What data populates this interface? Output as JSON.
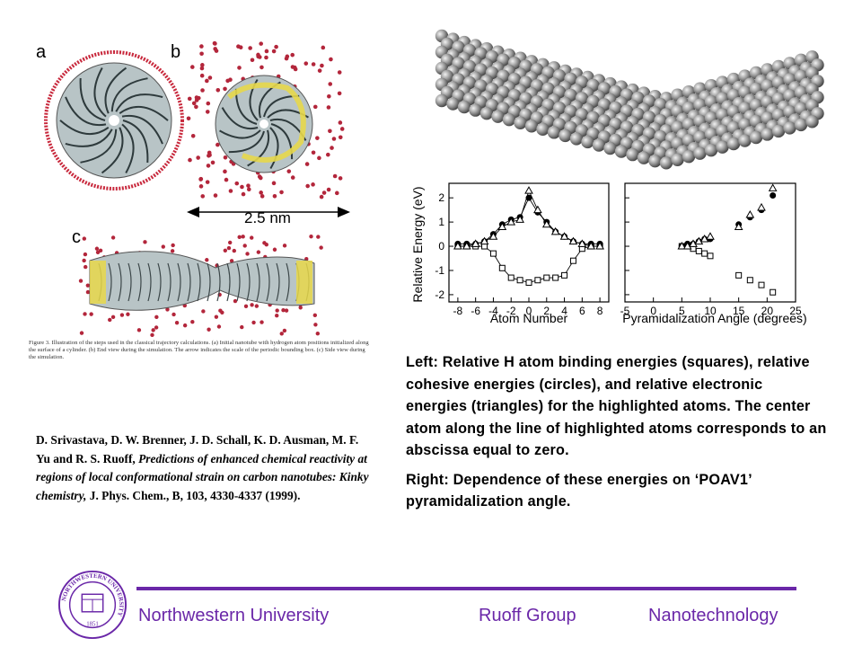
{
  "left_figure": {
    "panel_labels": [
      "a",
      "b",
      "c"
    ],
    "scale_label": "2.5 nm",
    "caption": "Figure 3. Illustration of the steps used in the classical trajectory calculations. (a) Initial nanotube with hydrogen atom positions initialized along the surface of a cylinder. (b) End view during the simulation. The arrow indicates the scale of the periodic bounding box. (c) Side view during the simulation."
  },
  "right_figure": {
    "ylabel": "Relative Energy (eV)",
    "y_ticks": [
      "2",
      "1",
      "0",
      "-1",
      "-2"
    ],
    "left_x_ticks": [
      "-8",
      "-6",
      "-4",
      "-2",
      "0",
      "2",
      "4",
      "6",
      "8"
    ],
    "right_x_ticks": [
      "-5",
      "0",
      "5",
      "10",
      "15",
      "20",
      "25"
    ],
    "left_xlabel": "Atom Number",
    "right_xlabel": "Pyramidalization Angle (degrees)"
  },
  "chart_data": [
    {
      "type": "line",
      "xlabel": "Atom Number",
      "ylabel": "Relative Energy (eV)",
      "xlim": [
        -9,
        9
      ],
      "ylim": [
        -2.3,
        2.6
      ],
      "series": [
        {
          "marker": "square",
          "x": [
            -8,
            -7,
            -6,
            -5,
            -4,
            -3,
            -2,
            -1,
            0,
            1,
            2,
            3,
            4,
            5,
            6,
            7,
            8
          ],
          "y": [
            0,
            0,
            0,
            0,
            -0.3,
            -0.9,
            -1.3,
            -1.4,
            -1.5,
            -1.4,
            -1.3,
            -1.3,
            -1.2,
            -0.6,
            -0.1,
            0,
            0
          ]
        },
        {
          "marker": "circle",
          "x": [
            -8,
            -7,
            -6,
            -5,
            -4,
            -3,
            -2,
            -1,
            0,
            1,
            2,
            3,
            4,
            5,
            6,
            7,
            8
          ],
          "y": [
            0.1,
            0.1,
            0.1,
            0.2,
            0.5,
            0.9,
            1.1,
            1.2,
            2.0,
            1.4,
            1.0,
            0.6,
            0.4,
            0.2,
            0.1,
            0.1,
            0.1
          ]
        },
        {
          "marker": "triangle",
          "x": [
            -8,
            -7,
            -6,
            -5,
            -4,
            -3,
            -2,
            -1,
            0,
            1,
            2,
            3,
            4,
            5,
            6,
            7,
            8
          ],
          "y": [
            0,
            0,
            0.1,
            0.2,
            0.4,
            0.8,
            1.0,
            1.1,
            2.3,
            1.5,
            0.9,
            0.6,
            0.4,
            0.2,
            0.1,
            0,
            0
          ]
        }
      ]
    },
    {
      "type": "scatter",
      "xlabel": "Pyramidalization Angle (degrees)",
      "xlim": [
        -5,
        25
      ],
      "ylim": [
        -2.3,
        2.6
      ],
      "series": [
        {
          "marker": "square",
          "x": [
            5,
            6,
            7,
            8,
            9,
            10,
            15,
            17,
            19,
            21
          ],
          "y": [
            0,
            0,
            -0.1,
            -0.2,
            -0.3,
            -0.4,
            -1.2,
            -1.4,
            -1.6,
            -1.9
          ]
        },
        {
          "marker": "circle",
          "x": [
            5,
            6,
            7,
            8,
            9,
            10,
            15,
            17,
            19,
            21
          ],
          "y": [
            0,
            0.1,
            0.1,
            0.2,
            0.3,
            0.3,
            0.9,
            1.2,
            1.5,
            2.1
          ]
        },
        {
          "marker": "triangle",
          "x": [
            5,
            6,
            7,
            8,
            9,
            10,
            15,
            17,
            19,
            21
          ],
          "y": [
            0,
            0,
            0.1,
            0.2,
            0.3,
            0.4,
            0.8,
            1.3,
            1.6,
            2.4
          ]
        }
      ]
    }
  ],
  "citation": {
    "authors": "D. Srivastava, D. W. Brenner, J. D. Schall, K. D. Ausman, M. F. Yu and R. S. Ruoff,",
    "title": "Predictions of enhanced chemical reactivity  at regions of local conformational strain on carbon nanotubes: Kinky chemistry,",
    "journal": "J. Phys. Chem., B, 103, 4330-4337 (1999)."
  },
  "description": {
    "left": "Left: Relative H atom binding energies (squares), relative cohesive energies (circles), and relative electronic energies (triangles) for the highlighted atoms. The center atom along the line of highlighted atoms corresponds to an abscissa equal to zero.",
    "right": "Right: Dependence of these energies on ‘POAV1’ pyramidalization angle."
  },
  "footer": {
    "university": "Northwestern University",
    "group": "Ruoff Group",
    "topic": "Nanotechnology",
    "seal_text": "NORTHWESTERN UNIVERSITY",
    "seal_year": "1851",
    "brand_color": "#6a27a8"
  }
}
